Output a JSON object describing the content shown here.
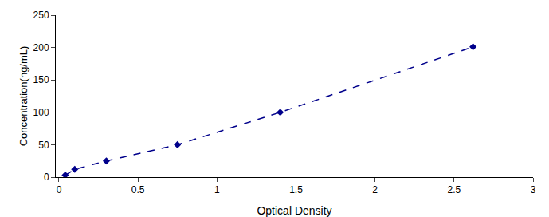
{
  "chart_data": {
    "type": "line",
    "x": [
      0.04,
      0.1,
      0.3,
      0.75,
      1.4,
      2.62
    ],
    "values": [
      3,
      12,
      25,
      50,
      100,
      201
    ],
    "color": "#00008B",
    "marker": "diamond",
    "line_style": "dashed",
    "xlabel": "Optical Density",
    "ylabel": "Concentration(ng/mL)",
    "xlim": [
      -0.02,
      3
    ],
    "ylim": [
      0,
      250
    ],
    "xticks": [
      0,
      0.5,
      1,
      1.5,
      2,
      2.5,
      3
    ],
    "yticks": [
      0,
      50,
      100,
      150,
      200,
      250
    ],
    "grid": false
  }
}
